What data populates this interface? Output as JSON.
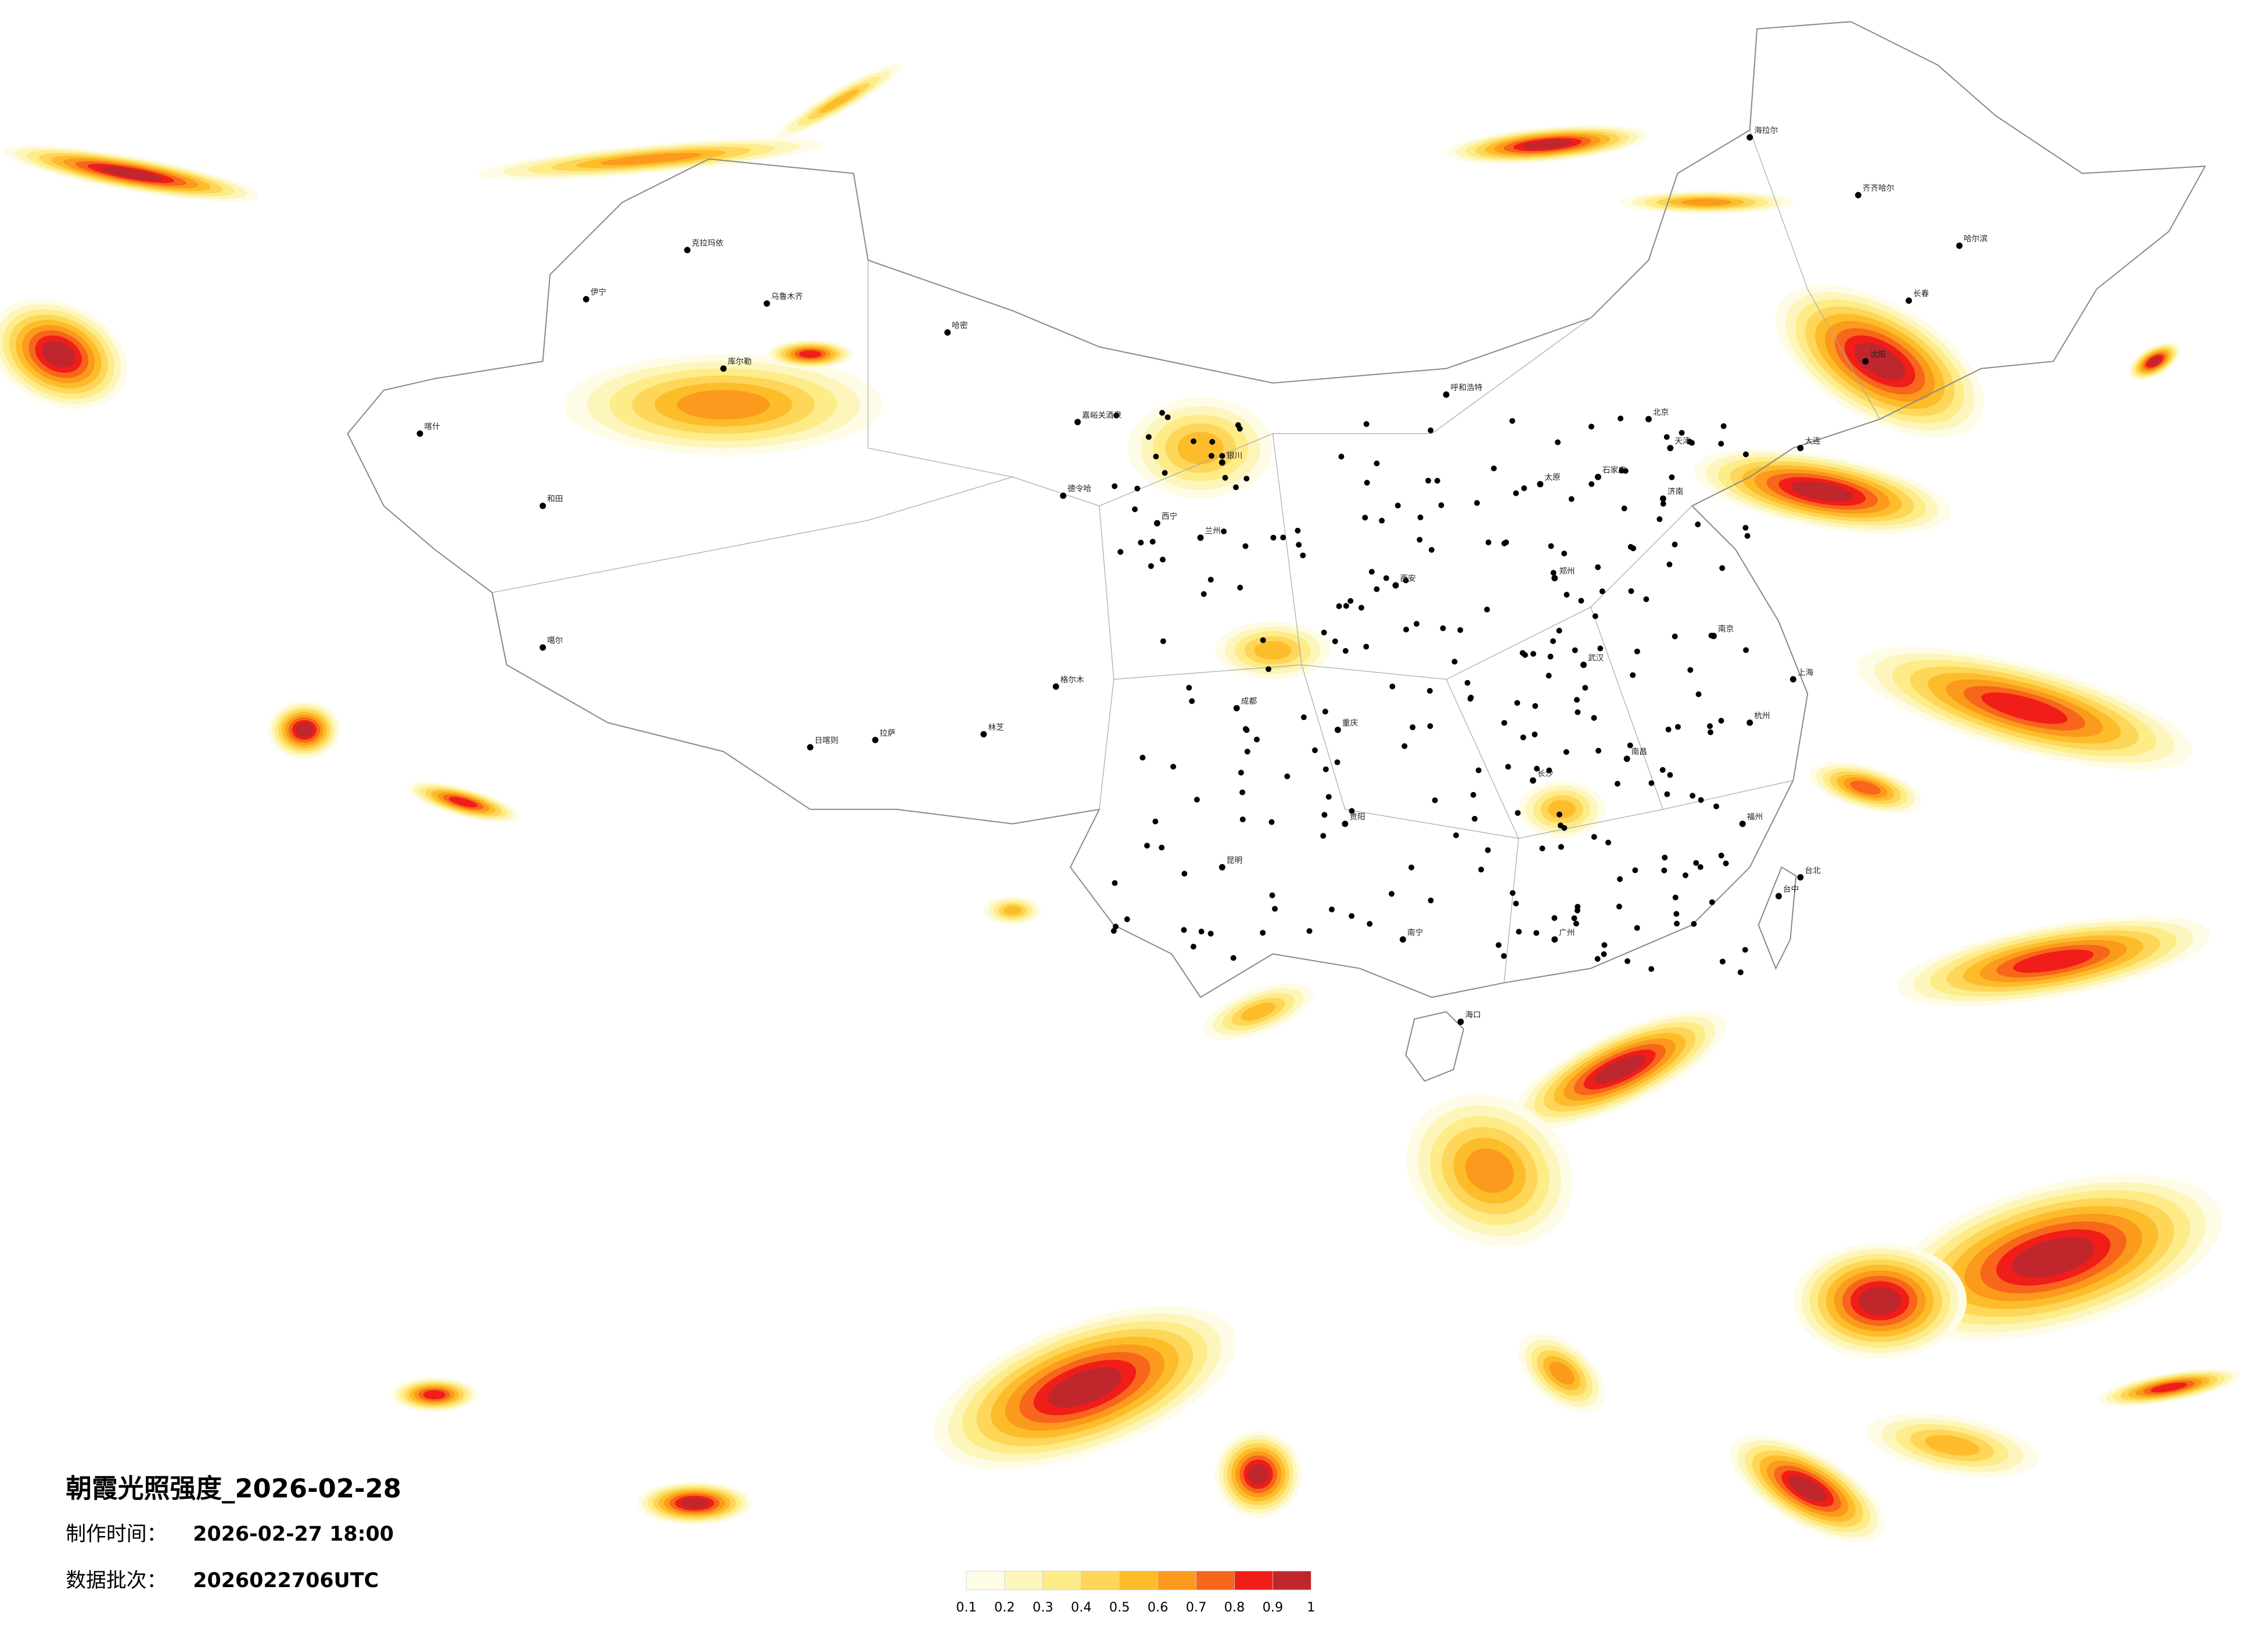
{
  "title": "朝霞光照强度_2026-02-28",
  "info": [
    {
      "label": "制作时间：",
      "value": "2026-02-27 18:00"
    },
    {
      "label": "数据批次：",
      "value": "2026022706UTC"
    }
  ],
  "legend": {
    "colors": [
      "#fefce6",
      "#fdf6bc",
      "#fdec88",
      "#fed65a",
      "#fdbd2b",
      "#fb9a1c",
      "#f7661a",
      "#f11d19",
      "#c0272d"
    ],
    "ticks": [
      0.1,
      0.2,
      0.3,
      0.4,
      0.5,
      0.6,
      0.7,
      0.8,
      0.9,
      1
    ]
  },
  "cities": [
    "克拉玛依",
    "乌鲁木齐",
    "伊宁",
    "喀什",
    "和田",
    "库尔勒",
    "哈密",
    "嘉峪关酒泉",
    "德令哈",
    "格尔木",
    "噶尔",
    "拉萨",
    "日喀则",
    "林芝",
    "呼和浩特",
    "银川",
    "兰州",
    "西宁",
    "北京",
    "天津",
    "石家庄",
    "太原",
    "郑州",
    "济南",
    "西安",
    "成都",
    "重庆",
    "武汉",
    "长沙",
    "南昌",
    "南京",
    "上海",
    "杭州",
    "福州",
    "广州",
    "南宁",
    "昆明",
    "贵阳",
    "海口",
    "哈尔滨",
    "长春",
    "沈阳",
    "大连",
    "齐齐哈尔",
    "海拉尔",
    "台北",
    "台中"
  ]
}
